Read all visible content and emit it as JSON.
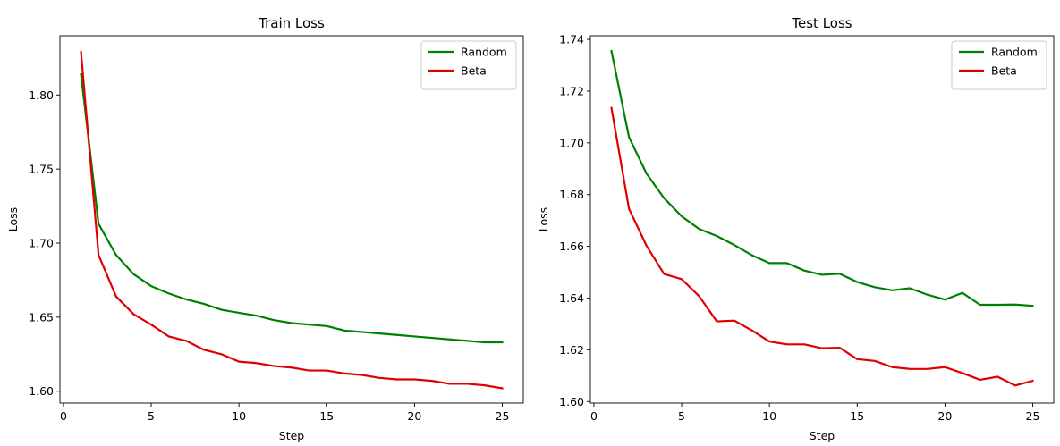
{
  "chart_data": [
    {
      "type": "line",
      "title": "Train Loss",
      "xlabel": "Step",
      "ylabel": "Loss",
      "xlim": [
        -0.2,
        26.2
      ],
      "ylim": [
        1.592,
        1.84
      ],
      "xticks": [
        0,
        5,
        10,
        15,
        20,
        25
      ],
      "yticks": [
        1.6,
        1.65,
        1.7,
        1.75,
        1.8
      ],
      "xtick_labels": [
        "0",
        "5",
        "10",
        "15",
        "20",
        "25"
      ],
      "ytick_labels": [
        "1.60",
        "1.65",
        "1.70",
        "1.75",
        "1.80"
      ],
      "legend_position": "top-right",
      "grid": false,
      "x": [
        1,
        2,
        3,
        4,
        5,
        6,
        7,
        8,
        9,
        10,
        11,
        12,
        13,
        14,
        15,
        16,
        17,
        18,
        19,
        20,
        21,
        22,
        23,
        24,
        25
      ],
      "series": [
        {
          "name": "Random",
          "color": "#008000",
          "values": [
            1.814,
            1.713,
            1.692,
            1.679,
            1.671,
            1.666,
            1.662,
            1.659,
            1.655,
            1.653,
            1.651,
            1.648,
            1.646,
            1.645,
            1.644,
            1.641,
            1.64,
            1.639,
            1.638,
            1.637,
            1.636,
            1.635,
            1.634,
            1.633,
            1.633
          ]
        },
        {
          "name": "Beta",
          "color": "#e00000",
          "values": [
            1.829,
            1.692,
            1.664,
            1.652,
            1.645,
            1.637,
            1.634,
            1.628,
            1.625,
            1.62,
            1.619,
            1.617,
            1.616,
            1.614,
            1.614,
            1.612,
            1.611,
            1.609,
            1.608,
            1.608,
            1.607,
            1.605,
            1.605,
            1.604,
            1.602
          ]
        }
      ]
    },
    {
      "type": "line",
      "title": "Test Loss",
      "xlabel": "Step",
      "ylabel": "Loss",
      "xlim": [
        -0.2,
        26.2
      ],
      "ylim": [
        1.5994,
        1.7414
      ],
      "xticks": [
        0,
        5,
        10,
        15,
        20,
        25
      ],
      "yticks": [
        1.6,
        1.62,
        1.64,
        1.66,
        1.68,
        1.7,
        1.72,
        1.74
      ],
      "xtick_labels": [
        "0",
        "5",
        "10",
        "15",
        "20",
        "25"
      ],
      "ytick_labels": [
        "1.60",
        "1.62",
        "1.64",
        "1.66",
        "1.68",
        "1.70",
        "1.72",
        "1.74"
      ],
      "legend_position": "top-right",
      "grid": false,
      "x": [
        1,
        2,
        3,
        4,
        5,
        6,
        7,
        8,
        9,
        10,
        11,
        12,
        13,
        14,
        15,
        16,
        17,
        18,
        19,
        20,
        21,
        22,
        23,
        24,
        25
      ],
      "series": [
        {
          "name": "Random",
          "color": "#008000",
          "values": [
            1.7355,
            1.7022,
            1.6881,
            1.6786,
            1.6716,
            1.6667,
            1.664,
            1.6605,
            1.6566,
            1.6535,
            1.6535,
            1.6506,
            1.649,
            1.6494,
            1.6462,
            1.6442,
            1.643,
            1.6438,
            1.6413,
            1.6394,
            1.642,
            1.6374,
            1.6374,
            1.6375,
            1.637
          ]
        },
        {
          "name": "Beta",
          "color": "#e00000",
          "values": [
            1.7135,
            1.6745,
            1.6602,
            1.6493,
            1.6473,
            1.6407,
            1.631,
            1.6313,
            1.6275,
            1.6232,
            1.6221,
            1.6221,
            1.6206,
            1.6208,
            1.6164,
            1.6157,
            1.6133,
            1.6126,
            1.6126,
            1.6133,
            1.611,
            1.6084,
            1.6096,
            1.6062,
            1.608
          ]
        }
      ]
    }
  ]
}
